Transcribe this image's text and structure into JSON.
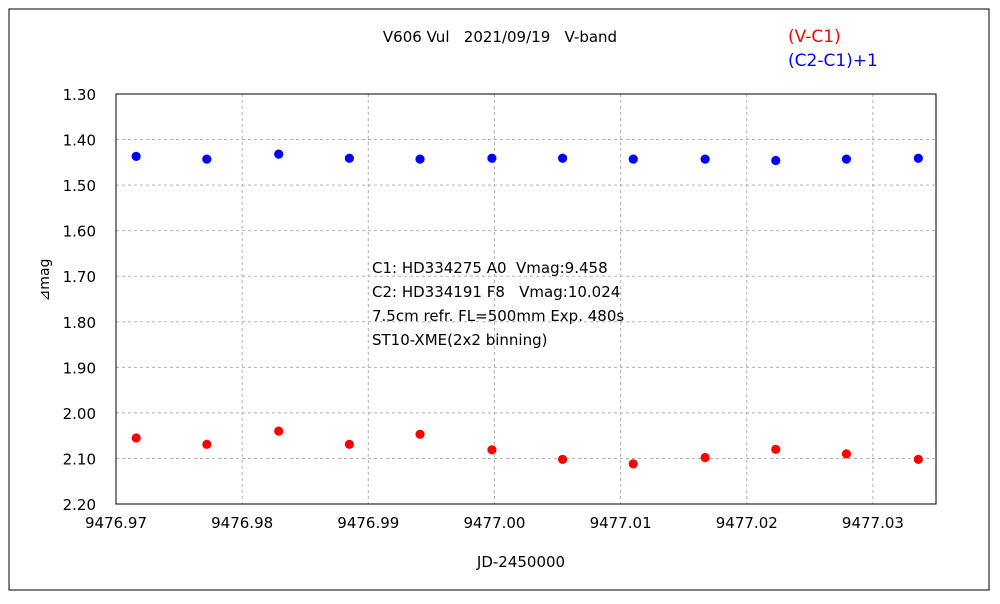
{
  "chart_data": {
    "type": "scatter",
    "title": "V606 Vul   2021/09/19   V-band",
    "xlabel": "JD-2450000",
    "ylabel": "⊿mag",
    "xlim": [
      9476.97,
      9477.035
    ],
    "ylim": [
      2.2,
      1.3
    ],
    "y_inverted": true,
    "grid": true,
    "legend_position": "top-right",
    "x_ticks": [
      9476.97,
      9476.98,
      9476.99,
      9477.0,
      9477.01,
      9477.02,
      9477.03
    ],
    "x_tick_labels": [
      "9476.97",
      "9476.98",
      "9476.99",
      "9477.00",
      "9477.01",
      "9477.02",
      "9477.03"
    ],
    "y_ticks": [
      1.3,
      1.4,
      1.5,
      1.6,
      1.7,
      1.8,
      1.9,
      2.0,
      2.1,
      2.2
    ],
    "y_tick_labels": [
      "1.30",
      "1.40",
      "1.50",
      "1.60",
      "1.70",
      "1.80",
      "1.90",
      "2.00",
      "2.10",
      "2.20"
    ],
    "x": [
      9476.9716,
      9476.9772,
      9476.9829,
      9476.9885,
      9476.9941,
      9476.9998,
      9477.0054,
      9477.011,
      9477.0167,
      9477.0223,
      9477.0279,
      9477.0336
    ],
    "series": [
      {
        "name": "(V-C1)",
        "color": "#ff0000",
        "values": [
          2.055,
          2.069,
          2.04,
          2.069,
          2.047,
          2.081,
          2.102,
          2.112,
          2.098,
          2.08,
          2.09,
          2.102
        ]
      },
      {
        "name": "(C2-C1)+1",
        "color": "#0000ff",
        "values": [
          1.437,
          1.443,
          1.432,
          1.441,
          1.443,
          1.441,
          1.441,
          1.443,
          1.443,
          1.446,
          1.443,
          1.441
        ]
      }
    ],
    "annotations": [
      "C1: HD334275 A0  Vmag:9.458",
      "C2: HD334191 F8   Vmag:10.024",
      "7.5cm refr. FL=500mm Exp. 480s",
      "ST10-XME(2x2 binning)"
    ]
  }
}
